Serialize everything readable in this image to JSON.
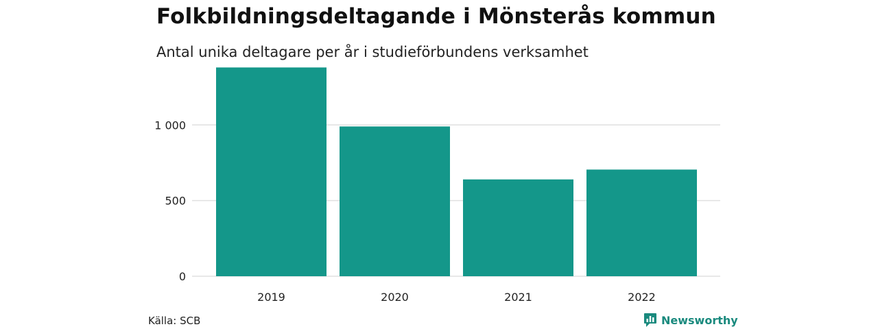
{
  "chart_data": {
    "type": "bar",
    "title": "Folkbildningsdeltagande i Mönsterås kommun",
    "subtitle": "Antal unika deltagare per år i studieförbundens verksamhet",
    "categories": [
      "2019",
      "2020",
      "2021",
      "2022"
    ],
    "values": [
      1380,
      990,
      640,
      705
    ],
    "ylim": [
      0,
      1400
    ],
    "yticks": [
      0,
      500,
      1000
    ],
    "ytick_labels": [
      "0",
      "500",
      "1 000"
    ],
    "grid": true,
    "bar_color": "#14978a",
    "grid_color": "#e0e0e0"
  },
  "footer": {
    "source": "Källa: SCB",
    "brand": "Newsworthy",
    "brand_icon": "bar-chart-icon",
    "brand_color": "#1a8a7e"
  }
}
